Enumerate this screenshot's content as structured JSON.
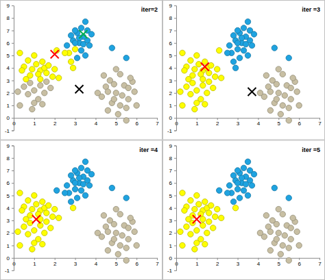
{
  "chart_data": [
    {
      "type": "scatter",
      "title": "iter=2",
      "xlim": [
        0,
        7
      ],
      "ylim": [
        -1,
        9
      ],
      "xticks": [
        0,
        1,
        2,
        3,
        4,
        5,
        6,
        7
      ],
      "yticks": [
        -1,
        0,
        1,
        2,
        3,
        4,
        5,
        6,
        7,
        8,
        9
      ],
      "series": [
        {
          "color": "#c8bfa3",
          "marker": "circle",
          "x": [
            0.5,
            0.8,
            1.0,
            1.3,
            0.7,
            1.2,
            1.5,
            0.3,
            1.0,
            1.6,
            0.9,
            1.8,
            0.2,
            1.4,
            4.3,
            4.5,
            4.7,
            4.8,
            5.0,
            5.2,
            5.4,
            5.6,
            5.8,
            4.6,
            5.1,
            5.5,
            4.9,
            5.3,
            5.7,
            4.4,
            5.0,
            5.9,
            5.5,
            4.9,
            5.2,
            4.6,
            5.6,
            6.0,
            4.1
          ],
          "values": [
            2.5,
            2.8,
            2.2,
            2.6,
            1.9,
            1.5,
            2.0,
            1.0,
            1.2,
            2.9,
            0.7,
            2.4,
            2.1,
            1.1,
            1.7,
            2.5,
            3.0,
            1.2,
            2.0,
            3.5,
            2.6,
            1.5,
            2.9,
            0.6,
            0.3,
            0.8,
            2.7,
            1.8,
            3.2,
            3.4,
            3.9,
            2.1,
            -0.2,
            1.5,
            1.0,
            2.1,
            2.4,
            1.0,
            2.0
          ]
        },
        {
          "color": "#ffff00",
          "marker": "circle",
          "x": [
            0.3,
            0.5,
            0.7,
            0.9,
            1.1,
            1.3,
            1.5,
            0.8,
            1.2,
            1.6,
            1.9,
            0.4,
            1.0,
            1.4,
            2.0,
            1.7,
            0.6,
            1.3,
            2.2,
            2.7,
            2.8,
            2.9,
            2.5,
            2.1,
            3.0
          ],
          "values": [
            5.2,
            4.1,
            4.6,
            3.9,
            4.3,
            3.8,
            4.0,
            3.4,
            3.5,
            3.6,
            3.3,
            3.8,
            5.0,
            4.5,
            3.9,
            4.2,
            3.1,
            3.1,
            3.2,
            5.2,
            4.5,
            4.0,
            5.2,
            5.4,
            5.5
          ]
        },
        {
          "color": "#1fa3e0",
          "marker": "circle",
          "x": [
            2.6,
            2.9,
            3.1,
            3.3,
            3.5,
            3.2,
            3.4,
            3.6,
            3.7,
            3.0,
            2.8,
            3.3,
            3.5,
            3.1,
            3.6,
            3.8,
            3.2,
            3.4,
            3.0,
            4.8,
            5.5
          ],
          "values": [
            5.8,
            6.2,
            6.8,
            7.2,
            7.7,
            6.0,
            6.5,
            6.2,
            5.8,
            7.0,
            6.6,
            5.4,
            5.0,
            4.8,
            7.0,
            6.7,
            6.4,
            5.9,
            6.0,
            5.6,
            4.8
          ]
        },
        {
          "color": "#ff0000",
          "marker": "x",
          "x": [
            2.0
          ],
          "values": [
            5.1
          ]
        },
        {
          "color": "#000000",
          "marker": "x",
          "x": [
            3.2
          ],
          "values": [
            2.3
          ]
        },
        {
          "color": "#00b050",
          "marker": "x",
          "x": [
            3.4
          ],
          "values": [
            6.7
          ]
        }
      ]
    },
    {
      "type": "scatter",
      "title": "iter =3",
      "xlim": [
        0,
        7
      ],
      "ylim": [
        -1,
        9
      ],
      "xticks": [
        0,
        1,
        2,
        3,
        4,
        5,
        6,
        7
      ],
      "yticks": [
        -1,
        0,
        1,
        2,
        3,
        4,
        5,
        6,
        7,
        8,
        9
      ],
      "series": [
        {
          "color": "#c8bfa3",
          "marker": "circle",
          "x": [
            4.3,
            4.5,
            4.7,
            4.8,
            5.0,
            5.2,
            5.4,
            5.6,
            5.8,
            4.6,
            5.1,
            5.5,
            4.9,
            5.3,
            5.7,
            4.4,
            5.0,
            5.9,
            5.5,
            4.9,
            5.2,
            4.6,
            5.6,
            6.0,
            4.1
          ],
          "values": [
            1.7,
            2.5,
            3.0,
            1.2,
            2.0,
            3.5,
            2.6,
            1.5,
            2.9,
            0.6,
            0.3,
            0.8,
            2.7,
            1.8,
            3.2,
            3.4,
            3.9,
            2.1,
            -0.2,
            1.5,
            1.0,
            2.1,
            2.4,
            1.0,
            2.0
          ]
        },
        {
          "color": "#ffff00",
          "marker": "circle",
          "x": [
            0.3,
            0.5,
            0.7,
            0.9,
            1.1,
            1.3,
            1.5,
            0.8,
            1.2,
            1.6,
            1.9,
            0.4,
            1.0,
            1.4,
            2.0,
            1.7,
            0.6,
            1.3,
            2.2,
            0.5,
            0.8,
            1.0,
            1.3,
            0.7,
            1.2,
            1.5,
            0.3,
            1.0,
            1.6,
            0.9,
            1.8,
            0.2,
            1.4,
            2.1
          ],
          "values": [
            5.2,
            4.1,
            4.6,
            3.9,
            4.3,
            3.8,
            4.0,
            3.4,
            3.5,
            3.6,
            3.3,
            3.8,
            5.0,
            4.5,
            3.9,
            4.2,
            3.1,
            3.1,
            3.2,
            2.5,
            2.8,
            2.2,
            2.6,
            1.9,
            1.5,
            2.0,
            1.0,
            1.2,
            2.9,
            0.7,
            2.4,
            2.1,
            1.1,
            5.4
          ]
        },
        {
          "color": "#1fa3e0",
          "marker": "circle",
          "x": [
            2.7,
            2.8,
            2.9,
            2.5,
            3.0,
            2.6,
            2.9,
            3.1,
            3.3,
            3.5,
            3.2,
            3.4,
            3.6,
            3.7,
            3.0,
            2.8,
            3.3,
            3.5,
            3.1,
            3.6,
            3.8,
            3.2,
            3.4,
            3.0,
            4.8,
            5.5
          ],
          "values": [
            5.2,
            4.5,
            4.0,
            5.2,
            5.5,
            5.8,
            6.2,
            6.8,
            7.2,
            7.7,
            6.0,
            6.5,
            6.2,
            5.8,
            7.0,
            6.6,
            5.4,
            5.0,
            4.8,
            7.0,
            6.7,
            6.4,
            5.9,
            6.0,
            5.6,
            4.8
          ]
        },
        {
          "color": "#ff0000",
          "marker": "x",
          "x": [
            1.4
          ],
          "values": [
            4.1
          ]
        },
        {
          "color": "#000000",
          "marker": "x",
          "x": [
            3.7
          ],
          "values": [
            2.1
          ]
        }
      ]
    },
    {
      "type": "scatter",
      "title": "iter =4",
      "xlim": [
        0,
        7
      ],
      "ylim": [
        -1,
        9
      ],
      "xticks": [
        0,
        1,
        2,
        3,
        4,
        5,
        6,
        7
      ],
      "yticks": [
        -1,
        0,
        1,
        2,
        3,
        4,
        5,
        6,
        7,
        8,
        9
      ],
      "series": [
        {
          "color": "#c8bfa3",
          "marker": "circle",
          "x": [
            4.3,
            4.5,
            4.7,
            4.8,
            5.0,
            5.2,
            5.4,
            5.6,
            5.8,
            4.6,
            5.1,
            5.5,
            4.9,
            5.3,
            5.7,
            4.4,
            5.0,
            5.9,
            5.5,
            4.9,
            5.2,
            4.6,
            5.6,
            6.0,
            4.1
          ],
          "values": [
            1.7,
            2.5,
            3.0,
            1.2,
            2.0,
            3.5,
            2.6,
            1.5,
            2.9,
            0.6,
            0.3,
            0.8,
            2.7,
            1.8,
            3.2,
            3.4,
            3.9,
            2.1,
            -0.2,
            1.5,
            1.0,
            2.1,
            2.4,
            1.0,
            2.0
          ]
        },
        {
          "color": "#ffff00",
          "marker": "circle",
          "x": [
            0.3,
            0.5,
            0.7,
            0.9,
            1.1,
            1.3,
            1.5,
            0.8,
            1.2,
            1.6,
            1.9,
            0.4,
            1.0,
            1.4,
            2.0,
            1.7,
            0.6,
            1.3,
            2.2,
            0.5,
            0.8,
            1.0,
            1.3,
            0.7,
            1.2,
            1.5,
            0.3,
            1.0,
            1.6,
            0.9,
            1.8,
            0.2,
            1.4,
            2.9
          ],
          "values": [
            5.2,
            4.1,
            4.6,
            3.9,
            4.3,
            3.8,
            4.0,
            3.4,
            3.5,
            3.6,
            3.3,
            3.8,
            5.0,
            4.5,
            3.9,
            4.2,
            3.1,
            3.1,
            3.2,
            2.5,
            2.8,
            2.2,
            2.6,
            1.9,
            1.5,
            2.0,
            1.0,
            1.2,
            2.9,
            0.7,
            2.4,
            2.1,
            1.1,
            4.0
          ]
        },
        {
          "color": "#1fa3e0",
          "marker": "circle",
          "x": [
            2.7,
            2.8,
            2.5,
            2.1,
            3.0,
            2.6,
            2.9,
            3.1,
            3.3,
            3.5,
            3.2,
            3.4,
            3.6,
            3.7,
            3.0,
            2.8,
            3.3,
            3.5,
            3.1,
            3.6,
            3.8,
            3.2,
            3.4,
            3.0,
            4.8,
            5.5
          ],
          "values": [
            5.2,
            4.5,
            5.2,
            5.4,
            5.5,
            5.8,
            6.2,
            6.8,
            7.2,
            7.7,
            6.0,
            6.5,
            6.2,
            5.8,
            7.0,
            6.6,
            5.4,
            5.0,
            4.8,
            7.0,
            6.7,
            6.4,
            5.9,
            6.0,
            5.6,
            4.8
          ]
        },
        {
          "color": "#ff0000",
          "marker": "x",
          "x": [
            1.1
          ],
          "values": [
            3.1
          ]
        }
      ]
    },
    {
      "type": "scatter",
      "title": "iter =5",
      "xlim": [
        0,
        7
      ],
      "ylim": [
        -1,
        9
      ],
      "xticks": [
        0,
        1,
        2,
        3,
        4,
        5,
        6,
        7
      ],
      "yticks": [
        -1,
        0,
        1,
        2,
        3,
        4,
        5,
        6,
        7,
        8,
        9
      ],
      "series": [
        {
          "color": "#c8bfa3",
          "marker": "circle",
          "x": [
            4.3,
            4.5,
            4.7,
            4.8,
            5.0,
            5.2,
            5.4,
            5.6,
            5.8,
            4.6,
            5.1,
            5.5,
            4.9,
            5.3,
            5.7,
            4.4,
            5.0,
            5.9,
            5.5,
            4.9,
            5.2,
            4.6,
            5.6,
            6.0,
            4.1
          ],
          "values": [
            1.7,
            2.5,
            3.0,
            1.2,
            2.0,
            3.5,
            2.6,
            1.5,
            2.9,
            0.6,
            0.3,
            0.8,
            2.7,
            1.8,
            3.2,
            3.4,
            3.9,
            2.1,
            -0.2,
            1.5,
            1.0,
            2.1,
            2.4,
            1.0,
            2.0
          ]
        },
        {
          "color": "#ffff00",
          "marker": "circle",
          "x": [
            0.3,
            0.5,
            0.7,
            0.9,
            1.1,
            1.3,
            1.5,
            0.8,
            1.2,
            1.6,
            1.9,
            0.4,
            1.0,
            1.4,
            2.0,
            1.7,
            0.6,
            1.3,
            2.2,
            0.5,
            0.8,
            1.0,
            1.3,
            0.7,
            1.2,
            1.5,
            0.3,
            1.0,
            1.6,
            0.9,
            1.8,
            0.2,
            1.4,
            2.9
          ],
          "values": [
            5.2,
            4.1,
            4.6,
            3.9,
            4.3,
            3.8,
            4.0,
            3.4,
            3.5,
            3.6,
            3.3,
            3.8,
            5.0,
            4.5,
            3.9,
            4.2,
            3.1,
            3.1,
            3.2,
            2.5,
            2.8,
            2.2,
            2.6,
            1.9,
            1.5,
            2.0,
            1.0,
            1.2,
            2.9,
            0.7,
            2.4,
            2.1,
            1.1,
            4.0
          ]
        },
        {
          "color": "#1fa3e0",
          "marker": "circle",
          "x": [
            2.7,
            2.8,
            2.5,
            2.1,
            3.0,
            2.6,
            2.9,
            3.1,
            3.3,
            3.5,
            3.2,
            3.4,
            3.6,
            3.7,
            3.0,
            2.8,
            3.3,
            3.5,
            3.1,
            3.6,
            3.8,
            3.2,
            3.4,
            3.0,
            4.8,
            5.5
          ],
          "values": [
            5.2,
            4.5,
            5.2,
            5.4,
            5.5,
            5.8,
            6.2,
            6.8,
            7.2,
            7.7,
            6.0,
            6.5,
            6.2,
            5.8,
            7.0,
            6.6,
            5.4,
            5.0,
            4.8,
            7.0,
            6.7,
            6.4,
            5.9,
            6.0,
            5.6,
            4.8
          ]
        },
        {
          "color": "#ff0000",
          "marker": "x",
          "x": [
            1.0
          ],
          "values": [
            3.1
          ]
        }
      ]
    }
  ]
}
